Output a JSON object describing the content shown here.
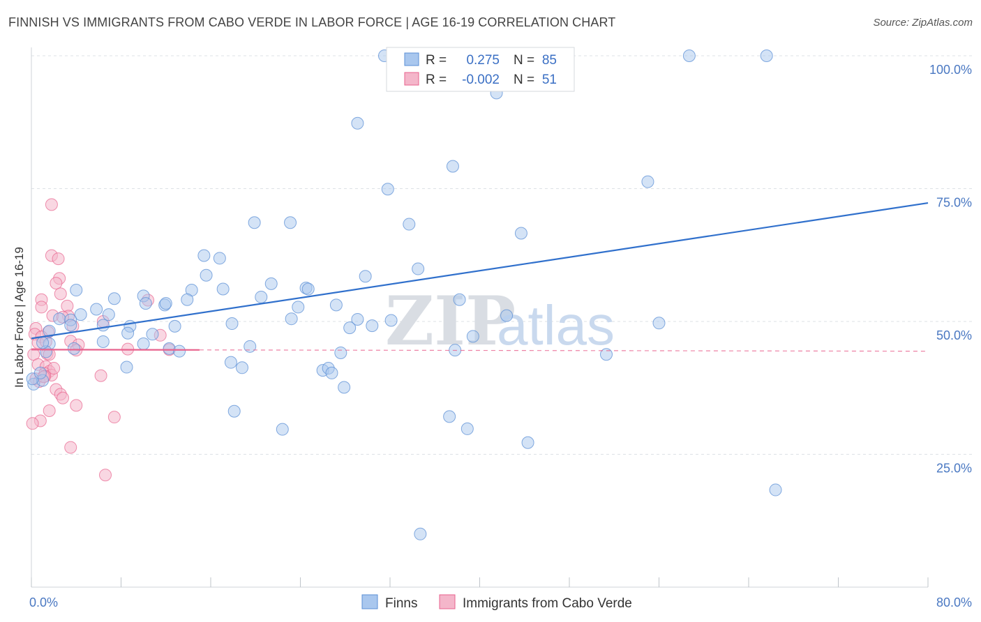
{
  "title": "FINNISH VS IMMIGRANTS FROM CABO VERDE IN LABOR FORCE | AGE 16-19 CORRELATION CHART",
  "source": "Source: ZipAtlas.com",
  "watermark": {
    "zip": "ZIP",
    "atlas": "atlas"
  },
  "colors": {
    "blue": "#5b8fd6",
    "blue_fill": "#a9c7ee",
    "pink": "#e8628d",
    "pink_fill": "#f4b6ca",
    "trend_blue": "#3070cc",
    "trend_pink": "#e8628d",
    "grid": "#dde1e6"
  },
  "legend": {
    "rows": [
      {
        "r_label": "R = ",
        "r_value": "0.275",
        "n_label": "N = ",
        "n_value": "85"
      },
      {
        "r_label": "R = ",
        "r_value": "-0.002",
        "n_label": "N = ",
        "n_value": "51"
      }
    ]
  },
  "chart_data": {
    "type": "scatter",
    "xlabel": "",
    "ylabel": "In Labor Force | Age 16-19",
    "xlim": [
      0,
      80
    ],
    "ylim": [
      0,
      100
    ],
    "x_tick_labels": [
      "0.0%",
      "80.0%"
    ],
    "y_ticks": [
      25,
      50,
      75,
      100
    ],
    "y_tick_labels": [
      "25.0%",
      "50.0%",
      "75.0%",
      "100.0%"
    ],
    "grid": true,
    "series": [
      {
        "name": "Finns",
        "color": "#5b8fd6",
        "points": [
          [
            31.5,
            100
          ],
          [
            35,
            100
          ],
          [
            58.7,
            100
          ],
          [
            65.6,
            100
          ],
          [
            41.5,
            93
          ],
          [
            29.1,
            87.3
          ],
          [
            37.6,
            79.2
          ],
          [
            31.8,
            74.9
          ],
          [
            55,
            76.3
          ],
          [
            19.9,
            68.6
          ],
          [
            23.1,
            68.6
          ],
          [
            33.7,
            68.3
          ],
          [
            43.7,
            66.6
          ],
          [
            34.5,
            59.9
          ],
          [
            15.4,
            62.4
          ],
          [
            16.8,
            61.9
          ],
          [
            15.6,
            58.7
          ],
          [
            29.8,
            58.5
          ],
          [
            21.4,
            57.1
          ],
          [
            14.3,
            55.9
          ],
          [
            17.1,
            56.1
          ],
          [
            24.5,
            56.3
          ],
          [
            24.7,
            56.1
          ],
          [
            4,
            55.9
          ],
          [
            10,
            54.8
          ],
          [
            13.9,
            54.1
          ],
          [
            20.5,
            54.6
          ],
          [
            7.4,
            54.3
          ],
          [
            38.2,
            54.1
          ],
          [
            10.2,
            53.4
          ],
          [
            11.9,
            53.1
          ],
          [
            12,
            53.4
          ],
          [
            27.2,
            53.1
          ],
          [
            23.8,
            52.7
          ],
          [
            5.8,
            52.3
          ],
          [
            4.4,
            51.3
          ],
          [
            6.9,
            51.3
          ],
          [
            42.4,
            51.1
          ],
          [
            2.5,
            50.5
          ],
          [
            3.5,
            50.3
          ],
          [
            23.2,
            50.5
          ],
          [
            29.1,
            50.4
          ],
          [
            32.1,
            50.2
          ],
          [
            17.9,
            49.6
          ],
          [
            56,
            49.7
          ],
          [
            3.5,
            49.3
          ],
          [
            6.4,
            49.3
          ],
          [
            8.8,
            49.1
          ],
          [
            12.8,
            49.1
          ],
          [
            28.4,
            48.8
          ],
          [
            30.4,
            49.2
          ],
          [
            1.6,
            48.2
          ],
          [
            8.6,
            47.8
          ],
          [
            10.8,
            47.6
          ],
          [
            39.4,
            47.2
          ],
          [
            6.4,
            46.2
          ],
          [
            10,
            45.8
          ],
          [
            1.6,
            45.8
          ],
          [
            3.8,
            44.9
          ],
          [
            12.3,
            44.9
          ],
          [
            13.2,
            44.4
          ],
          [
            19.5,
            45.3
          ],
          [
            37.8,
            44.6
          ],
          [
            1.3,
            44.3
          ],
          [
            27.6,
            44.1
          ],
          [
            51.3,
            43.8
          ],
          [
            17.8,
            42.3
          ],
          [
            8.5,
            41.4
          ],
          [
            18.8,
            41.3
          ],
          [
            26,
            40.8
          ],
          [
            26.5,
            41.2
          ],
          [
            26.8,
            40.3
          ],
          [
            27.9,
            37.6
          ],
          [
            0.2,
            38.2
          ],
          [
            1,
            38.9
          ],
          [
            18.1,
            33.1
          ],
          [
            37.3,
            32.1
          ],
          [
            22.4,
            29.7
          ],
          [
            38.9,
            29.8
          ],
          [
            44.3,
            27.2
          ],
          [
            66.4,
            18.3
          ],
          [
            34.7,
            10
          ],
          [
            0.1,
            39.2
          ],
          [
            1,
            46
          ],
          [
            0.8,
            40.3
          ]
        ],
        "trend": {
          "x": [
            0,
            80
          ],
          "y": [
            46.8,
            72.3
          ]
        }
      },
      {
        "name": "Immigrants from Cabo Verde",
        "color": "#e8628d",
        "points": [
          [
            1.8,
            72
          ],
          [
            1.8,
            62.4
          ],
          [
            2.4,
            61.8
          ],
          [
            2.5,
            58.1
          ],
          [
            2.2,
            57.2
          ],
          [
            2.6,
            55.2
          ],
          [
            0.9,
            54.1
          ],
          [
            10.4,
            54
          ],
          [
            0.9,
            52.7
          ],
          [
            3.2,
            52.9
          ],
          [
            3.3,
            51
          ],
          [
            1.9,
            51.1
          ],
          [
            2.8,
            50.8
          ],
          [
            6.4,
            50
          ],
          [
            3.7,
            49.1
          ],
          [
            0.4,
            48.7
          ],
          [
            1.5,
            48
          ],
          [
            0.3,
            47.6
          ],
          [
            11.5,
            47.4
          ],
          [
            0.9,
            47.1
          ],
          [
            3.5,
            46.3
          ],
          [
            0.6,
            46
          ],
          [
            1.3,
            46.2
          ],
          [
            4.2,
            45.6
          ],
          [
            8.6,
            44.8
          ],
          [
            12.3,
            44.7
          ],
          [
            4,
            44.6
          ],
          [
            0.2,
            43.8
          ],
          [
            1.4,
            43.9
          ],
          [
            1.6,
            43.8
          ],
          [
            0.6,
            41.9
          ],
          [
            1.3,
            41.5
          ],
          [
            1.6,
            40.6
          ],
          [
            1.2,
            40.2
          ],
          [
            1.8,
            39.9
          ],
          [
            1.2,
            39.7
          ],
          [
            6.2,
            39.8
          ],
          [
            0.4,
            39.2
          ],
          [
            0.7,
            38.7
          ],
          [
            2.2,
            37.2
          ],
          [
            2.6,
            36.3
          ],
          [
            2.8,
            35.6
          ],
          [
            4,
            34.2
          ],
          [
            1.6,
            33.2
          ],
          [
            7.4,
            32
          ],
          [
            0.8,
            31.3
          ],
          [
            0.1,
            30.8
          ],
          [
            3.5,
            26.3
          ],
          [
            6.6,
            21.1
          ],
          [
            1.1,
            39.6
          ],
          [
            2,
            41.2
          ]
        ],
        "trend": {
          "x": [
            0,
            80
          ],
          "y": [
            44.7,
            44.4
          ]
        }
      }
    ]
  },
  "bottom_legend": [
    {
      "label": "Finns"
    },
    {
      "label": "Immigrants from Cabo Verde"
    }
  ]
}
